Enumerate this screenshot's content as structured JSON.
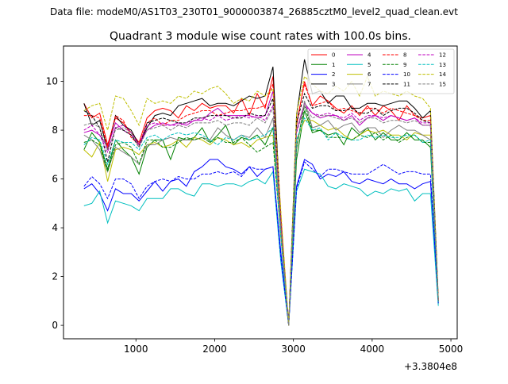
{
  "suptitle": "Data file: modeM0/AS1T03_230T01_9000003874_26885cztM0_level2_quad_clean.evt",
  "chart_data": {
    "type": "line",
    "title": "Quadrant 3 module wise count rates with 100.0s bins.",
    "xlabel": "",
    "ylabel": "",
    "x_offset_label": "+3.3804e8",
    "xlim": [
      80,
      5080
    ],
    "ylim": [
      -0.55,
      11.45
    ],
    "xticks": [
      1000,
      2000,
      3000,
      4000,
      5000
    ],
    "xtick_labels": [
      "1000",
      "2000",
      "3000",
      "4000",
      "5000"
    ],
    "yticks": [
      0,
      2,
      4,
      6,
      8,
      10
    ],
    "ytick_labels": [
      "0",
      "2",
      "4",
      "6",
      "8",
      "10"
    ],
    "grid": false,
    "legend_position": "top-right",
    "x": [
      340,
      440,
      540,
      640,
      740,
      840,
      940,
      1040,
      1140,
      1240,
      1340,
      1440,
      1540,
      1640,
      1740,
      1840,
      1940,
      2040,
      2140,
      2240,
      2340,
      2440,
      2540,
      2640,
      2740,
      2840,
      2940,
      3040,
      3140,
      3240,
      3340,
      3440,
      3540,
      3640,
      3740,
      3840,
      3940,
      4040,
      4140,
      4240,
      4340,
      4440,
      4540,
      4640,
      4740,
      4840
    ],
    "series": [
      {
        "name": "0",
        "color": "#ff0000",
        "dash": "solid",
        "values": [
          9.1,
          8.5,
          8.7,
          7.4,
          8.5,
          8.3,
          7.9,
          7.5,
          8.5,
          8.8,
          8.9,
          8.8,
          8.5,
          9.0,
          8.8,
          9.1,
          8.9,
          9.0,
          9.0,
          8.7,
          9.3,
          8.6,
          9.5,
          8.9,
          10.2,
          4.5,
          0.0,
          8.2,
          10.0,
          9.0,
          9.4,
          9.2,
          8.9,
          8.7,
          9.0,
          8.6,
          9.0,
          8.6,
          9.0,
          8.8,
          8.4,
          9.0,
          8.6,
          8.5,
          8.6,
          1.0
        ]
      },
      {
        "name": "1",
        "color": "#008000",
        "dash": "solid",
        "values": [
          7.2,
          7.9,
          7.5,
          6.4,
          7.6,
          7.2,
          6.9,
          6.2,
          7.3,
          7.6,
          7.6,
          6.8,
          7.7,
          7.6,
          7.7,
          8.1,
          7.5,
          7.8,
          8.2,
          7.4,
          7.7,
          7.6,
          7.8,
          7.4,
          8.1,
          3.9,
          0.0,
          6.8,
          8.8,
          7.9,
          8.0,
          7.8,
          7.9,
          7.4,
          8.1,
          7.8,
          8.1,
          7.6,
          7.9,
          7.6,
          7.6,
          7.9,
          7.6,
          7.6,
          7.3,
          0.9
        ]
      },
      {
        "name": "2",
        "color": "#0000ff",
        "dash": "solid",
        "values": [
          5.6,
          5.8,
          5.4,
          4.7,
          5.6,
          5.4,
          5.4,
          5.1,
          5.5,
          5.9,
          5.5,
          5.9,
          6.0,
          5.7,
          6.3,
          6.5,
          6.8,
          6.8,
          6.5,
          6.4,
          6.2,
          6.5,
          6.1,
          6.4,
          6.5,
          3.0,
          0.0,
          5.7,
          6.8,
          6.6,
          6.0,
          6.2,
          6.1,
          6.3,
          5.9,
          5.8,
          6.0,
          5.9,
          5.8,
          6.0,
          5.8,
          5.8,
          5.6,
          5.8,
          5.9,
          1.0
        ]
      },
      {
        "name": "3",
        "color": "#000000",
        "dash": "solid",
        "values": [
          9.1,
          8.2,
          8.4,
          7.2,
          8.6,
          8.2,
          8.0,
          7.4,
          8.1,
          8.6,
          8.7,
          8.6,
          9.0,
          9.1,
          9.2,
          9.3,
          9.0,
          9.1,
          9.1,
          9.0,
          9.2,
          9.4,
          9.3,
          9.4,
          10.6,
          4.3,
          0.0,
          8.6,
          10.9,
          9.5,
          9.6,
          9.1,
          9.4,
          9.4,
          8.9,
          8.9,
          9.1,
          9.1,
          9.0,
          9.1,
          9.2,
          9.2,
          8.9,
          8.5,
          8.8,
          1.1
        ]
      },
      {
        "name": "4",
        "color": "#bf00bf",
        "dash": "solid",
        "values": [
          7.9,
          8.0,
          7.8,
          7.3,
          8.3,
          8.0,
          7.8,
          7.4,
          8.0,
          8.2,
          8.3,
          8.2,
          8.3,
          8.2,
          8.4,
          8.4,
          8.7,
          8.9,
          8.6,
          8.6,
          8.6,
          8.6,
          8.5,
          8.6,
          9.6,
          4.2,
          0.0,
          8.0,
          9.1,
          8.7,
          8.5,
          8.6,
          8.6,
          8.4,
          8.6,
          8.2,
          8.5,
          8.6,
          8.4,
          8.6,
          8.5,
          8.4,
          8.5,
          8.2,
          8.2,
          1.0
        ]
      },
      {
        "name": "5",
        "color": "#00bfbf",
        "dash": "solid",
        "values": [
          4.9,
          5.0,
          5.5,
          4.2,
          5.1,
          5.0,
          4.9,
          4.7,
          5.2,
          5.2,
          5.2,
          5.6,
          5.6,
          5.4,
          5.3,
          5.8,
          5.8,
          5.7,
          5.8,
          5.8,
          5.7,
          5.9,
          6.0,
          5.8,
          6.3,
          2.6,
          0.0,
          5.5,
          6.4,
          6.3,
          6.2,
          5.7,
          5.6,
          5.8,
          5.7,
          5.6,
          5.3,
          5.5,
          5.4,
          5.6,
          5.5,
          5.6,
          5.1,
          5.4,
          5.4,
          0.8
        ]
      },
      {
        "name": "6",
        "color": "#bfbf00",
        "dash": "solid",
        "values": [
          7.2,
          6.9,
          7.5,
          5.9,
          7.2,
          7.3,
          7.2,
          7.0,
          7.4,
          7.5,
          7.3,
          7.4,
          7.6,
          7.3,
          7.7,
          7.6,
          7.4,
          7.7,
          7.6,
          7.4,
          7.5,
          7.3,
          7.6,
          7.7,
          7.8,
          3.6,
          0.0,
          7.6,
          8.4,
          8.4,
          8.2,
          8.0,
          8.1,
          7.8,
          7.6,
          7.8,
          8.0,
          7.9,
          8.0,
          7.8,
          7.8,
          7.6,
          7.9,
          7.8,
          7.8,
          1.0
        ]
      },
      {
        "name": "7",
        "color": "#808080",
        "dash": "solid",
        "values": [
          7.8,
          7.6,
          7.2,
          6.3,
          7.3,
          7.1,
          6.9,
          6.6,
          7.4,
          7.4,
          7.6,
          7.7,
          7.6,
          7.6,
          7.6,
          7.7,
          7.6,
          8.1,
          7.8,
          7.6,
          7.8,
          7.7,
          8.1,
          7.7,
          8.5,
          3.9,
          0.0,
          7.2,
          9.2,
          8.1,
          8.2,
          8.4,
          8.0,
          8.2,
          8.3,
          7.9,
          8.1,
          8.1,
          7.7,
          8.0,
          8.2,
          8.0,
          8.0,
          7.8,
          7.6,
          1.0
        ]
      },
      {
        "name": "8",
        "color": "#ff0000",
        "dash": "dashed",
        "values": [
          8.6,
          8.6,
          8.5,
          7.3,
          8.6,
          8.4,
          7.7,
          7.4,
          8.3,
          8.5,
          8.2,
          8.4,
          8.4,
          8.6,
          8.7,
          8.8,
          8.8,
          8.6,
          8.7,
          8.8,
          8.8,
          8.9,
          8.9,
          9.0,
          9.9,
          4.4,
          0.0,
          8.3,
          9.9,
          9.0,
          9.1,
          9.2,
          8.8,
          8.9,
          8.8,
          8.7,
          8.9,
          8.9,
          8.7,
          8.9,
          8.8,
          8.7,
          8.6,
          8.4,
          8.4,
          1.0
        ]
      },
      {
        "name": "9",
        "color": "#008000",
        "dash": "dashed",
        "values": [
          7.5,
          7.6,
          7.4,
          6.3,
          7.4,
          7.5,
          7.3,
          6.6,
          7.6,
          7.6,
          7.3,
          7.3,
          7.5,
          7.7,
          7.6,
          7.7,
          7.5,
          7.7,
          7.5,
          7.5,
          7.7,
          7.4,
          7.1,
          7.3,
          7.5,
          3.7,
          0.0,
          7.3,
          9.0,
          8.0,
          8.0,
          7.7,
          7.7,
          7.7,
          7.6,
          7.8,
          7.7,
          7.9,
          7.6,
          7.8,
          7.5,
          7.7,
          7.8,
          7.5,
          7.5,
          0.9
        ]
      },
      {
        "name": "10",
        "color": "#0000ff",
        "dash": "dashed",
        "values": [
          5.7,
          6.1,
          5.8,
          5.2,
          6.0,
          6.0,
          5.8,
          5.2,
          5.7,
          5.9,
          6.0,
          5.9,
          6.1,
          6.0,
          6.0,
          6.2,
          6.2,
          6.3,
          6.2,
          6.3,
          6.1,
          6.5,
          6.4,
          6.4,
          6.5,
          2.8,
          0.0,
          5.6,
          6.7,
          6.4,
          6.1,
          6.4,
          6.4,
          6.3,
          6.2,
          6.2,
          6.2,
          6.4,
          6.6,
          6.4,
          6.2,
          6.3,
          6.3,
          6.2,
          6.2,
          0.9
        ]
      },
      {
        "name": "11",
        "color": "#000000",
        "dash": "dashed",
        "values": [
          8.8,
          8.6,
          8.1,
          6.7,
          8.1,
          8.0,
          7.8,
          7.3,
          8.3,
          8.4,
          8.5,
          8.4,
          8.3,
          8.3,
          8.5,
          8.5,
          8.6,
          8.6,
          8.6,
          8.5,
          8.5,
          8.7,
          8.6,
          8.6,
          9.3,
          4.1,
          0.0,
          8.3,
          9.5,
          8.9,
          9.0,
          9.0,
          8.8,
          8.8,
          8.9,
          8.7,
          8.7,
          8.9,
          8.6,
          8.8,
          8.9,
          8.9,
          8.7,
          8.4,
          8.3,
          1.0
        ]
      },
      {
        "name": "12",
        "color": "#bf00bf",
        "dash": "dashed",
        "values": [
          8.0,
          8.2,
          7.8,
          7.1,
          8.1,
          8.2,
          7.9,
          7.4,
          8.2,
          8.3,
          8.2,
          8.2,
          8.2,
          8.3,
          8.4,
          8.5,
          8.4,
          8.6,
          8.4,
          8.5,
          8.6,
          8.5,
          8.6,
          8.4,
          9.0,
          4.1,
          0.0,
          7.9,
          9.0,
          8.7,
          8.6,
          8.7,
          8.6,
          8.5,
          8.7,
          8.4,
          8.6,
          8.6,
          8.5,
          8.6,
          8.5,
          8.4,
          8.5,
          8.3,
          8.3,
          1.0
        ]
      },
      {
        "name": "13",
        "color": "#00bfbf",
        "dash": "dashed",
        "values": [
          7.4,
          7.7,
          7.6,
          6.6,
          7.6,
          7.5,
          7.5,
          7.2,
          7.7,
          7.8,
          7.6,
          7.8,
          7.9,
          7.8,
          7.9,
          7.8,
          7.6,
          7.4,
          7.7,
          7.6,
          7.8,
          7.6,
          7.7,
          7.8,
          8.1,
          3.6,
          0.0,
          7.6,
          8.5,
          8.0,
          8.1,
          7.6,
          7.9,
          7.7,
          7.6,
          7.6,
          7.8,
          7.7,
          7.8,
          7.7,
          7.7,
          7.8,
          7.8,
          7.5,
          7.6,
          0.9
        ]
      },
      {
        "name": "14",
        "color": "#bfbf00",
        "dash": "dashed",
        "values": [
          8.8,
          9.0,
          9.1,
          8.0,
          9.4,
          9.3,
          8.8,
          8.2,
          9.3,
          9.1,
          9.2,
          9.1,
          9.4,
          9.3,
          9.6,
          9.5,
          9.7,
          9.8,
          9.5,
          9.1,
          9.3,
          9.2,
          9.6,
          9.4,
          9.7,
          4.7,
          0.0,
          8.7,
          10.2,
          9.9,
          9.6,
          9.5,
          9.8,
          9.6,
          10.0,
          9.4,
          10.2,
          9.4,
          9.6,
          9.5,
          9.4,
          9.6,
          9.4,
          9.3,
          8.9,
          1.1
        ]
      },
      {
        "name": "15",
        "color": "#808080",
        "dash": "dashed",
        "values": [
          8.2,
          8.3,
          8.1,
          7.2,
          8.0,
          8.1,
          7.9,
          7.3,
          8.0,
          8.1,
          8.2,
          8.0,
          8.2,
          8.1,
          8.3,
          8.3,
          8.3,
          8.4,
          8.2,
          8.3,
          8.3,
          8.2,
          8.5,
          8.3,
          8.9,
          4.0,
          0.0,
          8.0,
          9.0,
          8.5,
          8.6,
          8.6,
          8.5,
          8.4,
          8.5,
          8.3,
          8.5,
          8.5,
          8.3,
          8.4,
          8.4,
          8.3,
          8.4,
          8.2,
          8.2,
          1.0
        ]
      }
    ]
  }
}
